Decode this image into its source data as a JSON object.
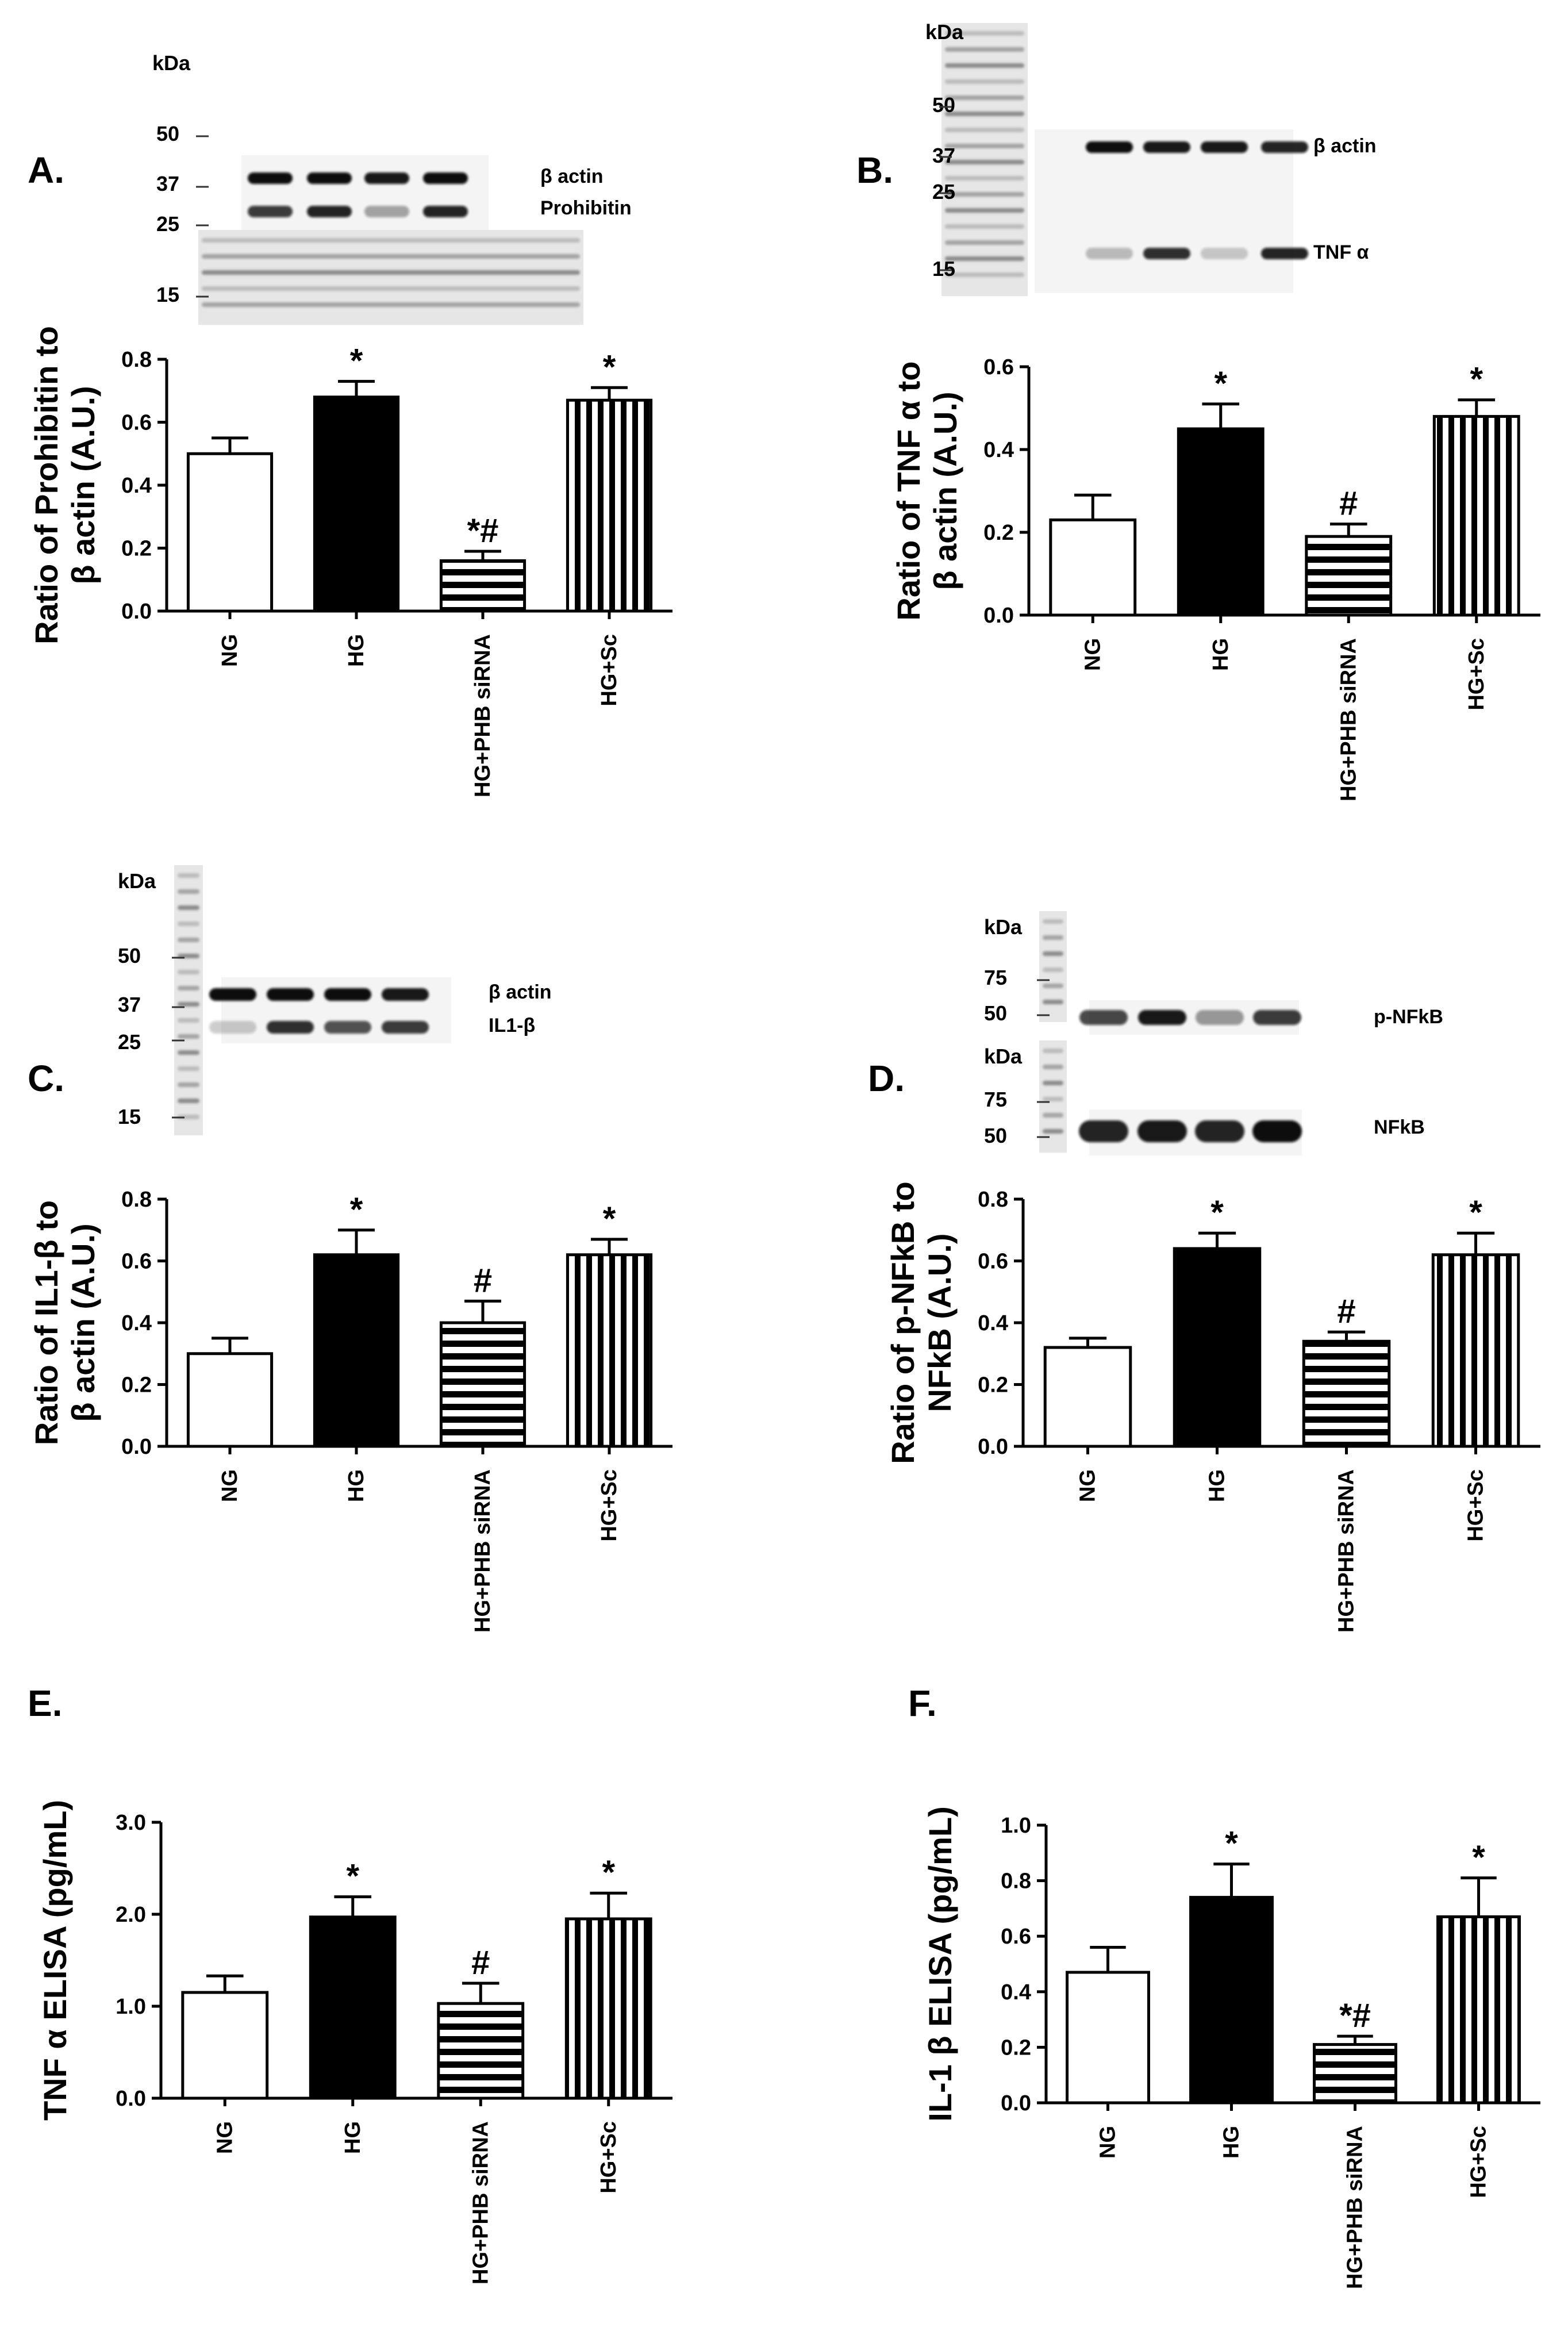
{
  "categories": [
    "NG",
    "HG",
    "HG+PHB siRNA",
    "HG+Sc"
  ],
  "panels": [
    {
      "label": "A.",
      "ylabel": [
        "Ratio of Prohibitin to",
        "β actin (A.U.)"
      ],
      "blots": [
        {
          "kda": "kDa",
          "markers": [
            "50",
            "37",
            "25",
            "15"
          ],
          "bands": [
            {
              "label": "β actin",
              "intensity": [
                1,
                1,
                0.95,
                1
              ]
            },
            {
              "label": "Prohibitin",
              "intensity": [
                0.8,
                0.9,
                0.35,
                0.9
              ]
            }
          ]
        }
      ]
    },
    {
      "label": "B.",
      "ylabel": [
        "Ratio of TNF α to",
        "β actin (A.U.)"
      ],
      "blots": [
        {
          "kda": "kDa",
          "markers": [
            "50",
            "37",
            "25",
            "15"
          ],
          "bands": [
            {
              "label": "β actin",
              "intensity": [
                1,
                0.95,
                0.95,
                0.9
              ]
            },
            {
              "label": "TNF α",
              "intensity": [
                0.25,
                0.85,
                0.2,
                0.9
              ]
            }
          ]
        }
      ]
    },
    {
      "label": "C.",
      "ylabel": [
        "Ratio of IL1-β to",
        "β actin (A.U.)"
      ],
      "blots": [
        {
          "kda": "kDa",
          "markers": [
            "50",
            "37",
            "25",
            "15"
          ],
          "bands": [
            {
              "label": "β actin",
              "intensity": [
                1,
                1,
                1,
                0.95
              ]
            },
            {
              "label": "IL1-β",
              "intensity": [
                0.2,
                0.85,
                0.7,
                0.8
              ]
            }
          ]
        }
      ]
    },
    {
      "label": "D.",
      "ylabel": [
        "Ratio of p-NFkB to",
        "NFkB (A.U.)"
      ],
      "blots": [
        {
          "kda": "kDa",
          "markers": [
            "75",
            "50"
          ],
          "bands": [
            {
              "label": "p-NFkB",
              "intensity": [
                0.75,
                0.95,
                0.4,
                0.8
              ]
            }
          ]
        },
        {
          "kda": "kDa",
          "markers": [
            "75",
            "50"
          ],
          "bands": [
            {
              "label": "NFkB",
              "intensity": [
                0.9,
                0.95,
                0.9,
                1
              ]
            }
          ]
        }
      ]
    },
    {
      "label": "E.",
      "ylabel": [
        "TNF α  ELISA (pg/mL)"
      ],
      "blots": []
    },
    {
      "label": "F.",
      "ylabel": [
        "IL-1 β  ELISA (pg/mL)"
      ],
      "blots": []
    }
  ],
  "chart_data": [
    {
      "type": "bar",
      "panel": "A.",
      "categories": [
        "NG",
        "HG",
        "HG+PHB siRNA",
        "HG+Sc"
      ],
      "values": [
        0.5,
        0.68,
        0.16,
        0.67
      ],
      "errors": [
        0.05,
        0.05,
        0.03,
        0.04
      ],
      "significance": [
        "",
        "*",
        "*#",
        "*"
      ],
      "ylabel": "Ratio of Prohibitin to β actin (A.U.)",
      "ylim": [
        0,
        0.8
      ],
      "yticks": [
        "0.0",
        "0.2",
        "0.4",
        "0.6",
        "0.8"
      ],
      "patterns": [
        "open",
        "solid",
        "horizontal",
        "vertical"
      ]
    },
    {
      "type": "bar",
      "panel": "B.",
      "categories": [
        "NG",
        "HG",
        "HG+PHB siRNA",
        "HG+Sc"
      ],
      "values": [
        0.23,
        0.45,
        0.19,
        0.48
      ],
      "errors": [
        0.06,
        0.06,
        0.03,
        0.04
      ],
      "significance": [
        "",
        "*",
        "#",
        "*"
      ],
      "ylabel": "Ratio of TNF α to β actin (A.U.)",
      "ylim": [
        0,
        0.6
      ],
      "yticks": [
        "0.0",
        "0.2",
        "0.4",
        "0.6"
      ],
      "patterns": [
        "open",
        "solid",
        "horizontal",
        "vertical"
      ]
    },
    {
      "type": "bar",
      "panel": "C.",
      "categories": [
        "NG",
        "HG",
        "HG+PHB siRNA",
        "HG+Sc"
      ],
      "values": [
        0.3,
        0.62,
        0.4,
        0.62
      ],
      "errors": [
        0.05,
        0.08,
        0.07,
        0.05
      ],
      "significance": [
        "",
        "*",
        "#",
        "*"
      ],
      "ylabel": "Ratio of IL1-β to β actin (A.U.)",
      "ylim": [
        0,
        0.8
      ],
      "yticks": [
        "0.0",
        "0.2",
        "0.4",
        "0.6",
        "0.8"
      ],
      "patterns": [
        "open",
        "solid",
        "horizontal",
        "vertical"
      ]
    },
    {
      "type": "bar",
      "panel": "D.",
      "categories": [
        "NG",
        "HG",
        "HG+PHB siRNA",
        "HG+Sc"
      ],
      "values": [
        0.32,
        0.64,
        0.34,
        0.62
      ],
      "errors": [
        0.03,
        0.05,
        0.03,
        0.07
      ],
      "significance": [
        "",
        "*",
        "#",
        "*"
      ],
      "ylabel": "Ratio of p-NFkB to NFkB (A.U.)",
      "ylim": [
        0,
        0.8
      ],
      "yticks": [
        "0.0",
        "0.2",
        "0.4",
        "0.6",
        "0.8"
      ],
      "patterns": [
        "open",
        "solid",
        "horizontal",
        "vertical"
      ]
    },
    {
      "type": "bar",
      "panel": "E.",
      "categories": [
        "NG",
        "HG",
        "HG+PHB siRNA",
        "HG+Sc"
      ],
      "values": [
        1.15,
        1.97,
        1.03,
        1.95
      ],
      "errors": [
        0.18,
        0.22,
        0.22,
        0.28
      ],
      "significance": [
        "",
        "*",
        "#",
        "*"
      ],
      "ylabel": "TNF α ELISA (pg/mL)",
      "ylim": [
        0,
        3.0
      ],
      "yticks": [
        "0.0",
        "1.0",
        "2.0",
        "3.0"
      ],
      "patterns": [
        "open",
        "solid",
        "horizontal",
        "vertical"
      ]
    },
    {
      "type": "bar",
      "panel": "F.",
      "categories": [
        "NG",
        "HG",
        "HG+PHB siRNA",
        "HG+Sc"
      ],
      "values": [
        0.47,
        0.74,
        0.21,
        0.67
      ],
      "errors": [
        0.09,
        0.12,
        0.03,
        0.14
      ],
      "significance": [
        "",
        "*",
        "*#",
        "*"
      ],
      "ylabel": "IL-1 β ELISA (pg/mL)",
      "ylim": [
        0,
        1.0
      ],
      "yticks": [
        "0.0",
        "0.2",
        "0.4",
        "0.6",
        "0.8",
        "1.0"
      ],
      "patterns": [
        "open",
        "solid",
        "horizontal",
        "vertical"
      ]
    }
  ]
}
